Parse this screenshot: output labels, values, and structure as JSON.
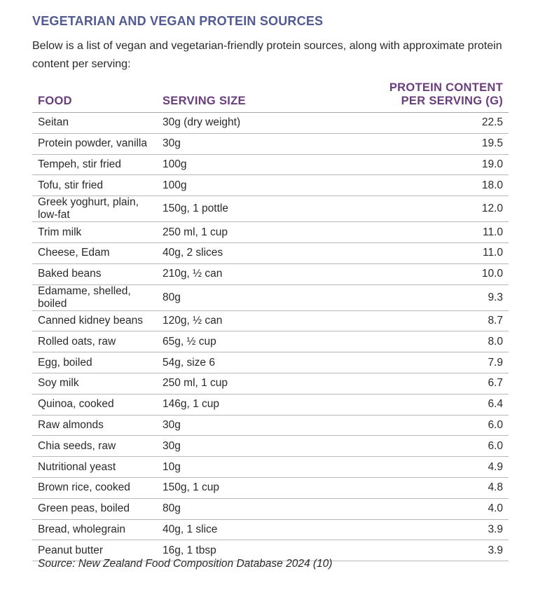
{
  "title": "VEGETARIAN AND VEGAN PROTEIN SOURCES",
  "intro": "Below is a list of vegan and vegetarian-friendly protein sources, along with approximate protein content per serving:",
  "colors": {
    "title": "#515a92",
    "header": "#6a3d7c"
  },
  "table": {
    "headers": [
      "FOOD",
      "SERVING SIZE",
      "PROTEIN CONTENT PER SERVING (G)"
    ],
    "rows": [
      [
        "Seitan",
        "30g (dry weight)",
        "22.5"
      ],
      [
        "Protein powder, vanilla",
        "30g",
        "19.5"
      ],
      [
        "Tempeh, stir fried",
        "100g",
        "19.0"
      ],
      [
        "Tofu, stir fried",
        "100g",
        "18.0"
      ],
      [
        "Greek yoghurt, plain, low-fat",
        "150g, 1 pottle",
        "12.0"
      ],
      [
        "Trim milk",
        "250 ml, 1 cup",
        "11.0"
      ],
      [
        "Cheese, Edam",
        "40g, 2 slices",
        "11.0"
      ],
      [
        "Baked beans",
        "210g, ½ can",
        "10.0"
      ],
      [
        "Edamame, shelled, boiled",
        "80g",
        "9.3"
      ],
      [
        "Canned kidney beans",
        "120g, ½ can",
        "8.7"
      ],
      [
        "Rolled oats, raw",
        "65g, ½ cup",
        "8.0"
      ],
      [
        "Egg, boiled",
        "54g, size 6",
        "7.9"
      ],
      [
        "Soy milk",
        "250 ml, 1 cup",
        "6.7"
      ],
      [
        "Quinoa, cooked",
        "146g, 1 cup",
        "6.4"
      ],
      [
        "Raw almonds",
        "30g",
        "6.0"
      ],
      [
        "Chia seeds, raw",
        "30g",
        "6.0"
      ],
      [
        "Nutritional yeast",
        "10g",
        "4.9"
      ],
      [
        "Brown rice, cooked",
        "150g, 1 cup",
        "4.8"
      ],
      [
        "Green peas, boiled",
        "80g",
        "4.0"
      ],
      [
        "Bread, wholegrain",
        "40g, 1 slice",
        "3.9"
      ],
      [
        "Peanut butter",
        "16g, 1 tbsp",
        "3.9"
      ]
    ]
  },
  "source": "Source: New Zealand Food Composition Database 2024 (10)"
}
